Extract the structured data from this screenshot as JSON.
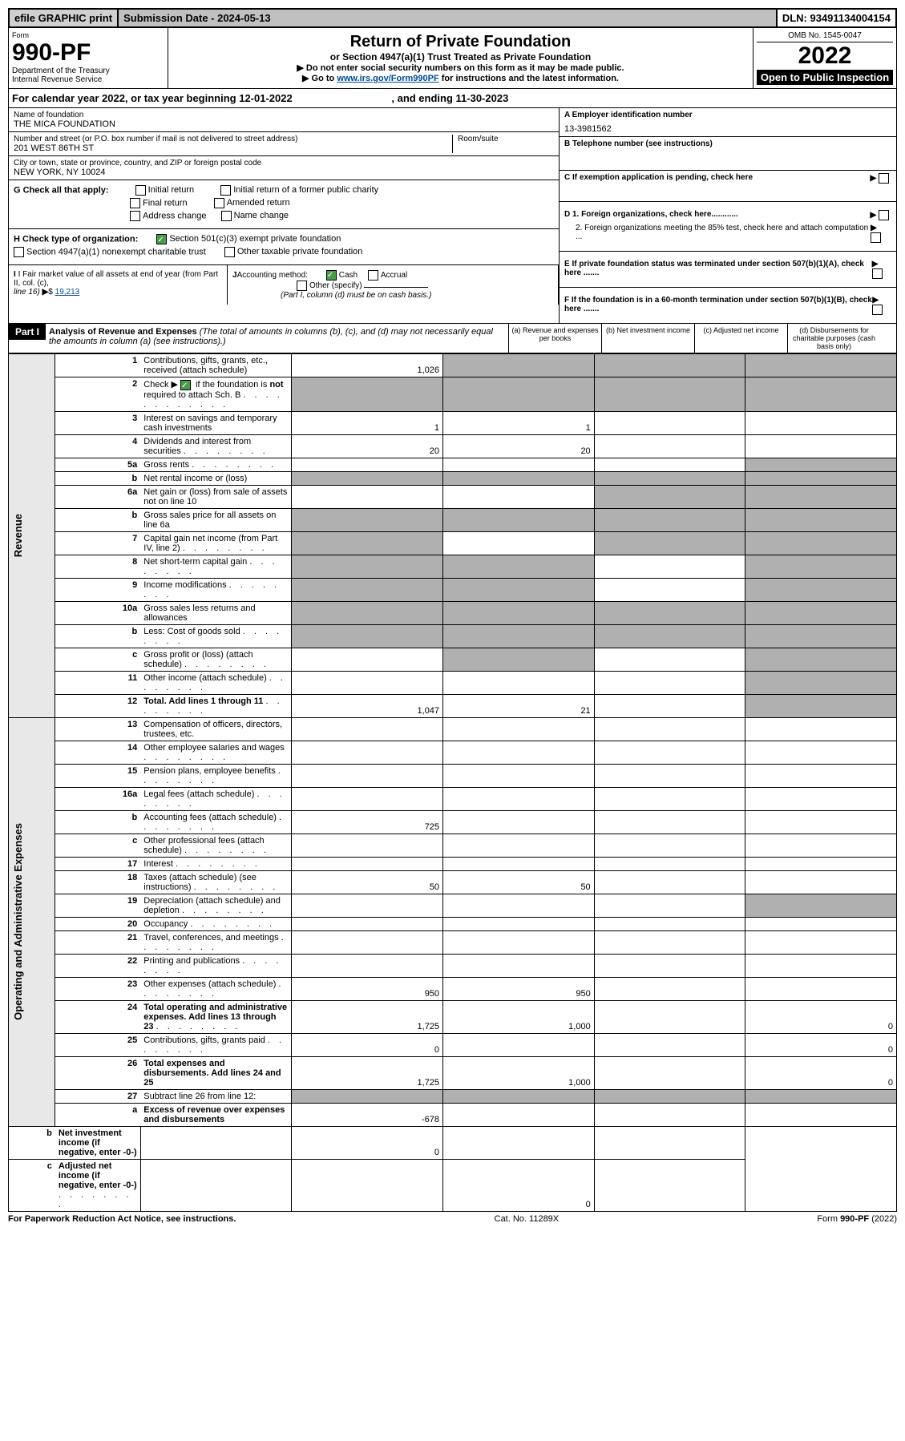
{
  "top": {
    "efile": "efile GRAPHIC print",
    "submission": "Submission Date - 2024-05-13",
    "dln": "DLN: 93491134004154"
  },
  "header": {
    "form": "Form",
    "formNum": "990-PF",
    "dept": "Department of the Treasury",
    "irs": "Internal Revenue Service",
    "title": "Return of Private Foundation",
    "subtitle": "or Section 4947(a)(1) Trust Treated as Private Foundation",
    "instr1": "▶ Do not enter social security numbers on this form as it may be made public.",
    "instr2a": "▶ Go to ",
    "instr2link": "www.irs.gov/Form990PF",
    "instr2b": " for instructions and the latest information.",
    "omb": "OMB No. 1545-0047",
    "year": "2022",
    "open": "Open to Public Inspection"
  },
  "calYear": {
    "text": "For calendar year 2022, or tax year beginning 12-01-2022",
    "end": ", and ending 11-30-2023"
  },
  "entity": {
    "nameLabel": "Name of foundation",
    "name": "THE MICA FOUNDATION",
    "addrLabel": "Number and street (or P.O. box number if mail is not delivered to street address)",
    "roomLabel": "Room/suite",
    "addr": "201 WEST 86TH ST",
    "cityLabel": "City or town, state or province, country, and ZIP or foreign postal code",
    "city": "NEW YORK, NY  10024",
    "einLabel": "A Employer identification number",
    "ein": "13-3981562",
    "telLabel": "B Telephone number (see instructions)",
    "cLabel": "C If exemption application is pending, check here"
  },
  "checkG": {
    "label": "G Check all that apply:",
    "o1": "Initial return",
    "o2": "Initial return of a former public charity",
    "o3": "Final return",
    "o4": "Amended return",
    "o5": "Address change",
    "o6": "Name change"
  },
  "checkH": {
    "label": "H Check type of organization:",
    "o1": "Section 501(c)(3) exempt private foundation",
    "o2": "Section 4947(a)(1) nonexempt charitable trust",
    "o3": "Other taxable private foundation"
  },
  "rightChecks": {
    "d1": "D 1. Foreign organizations, check here............",
    "d2": "2. Foreign organizations meeting the 85% test, check here and attach computation ...",
    "e": "E  If private foundation status was terminated under section 507(b)(1)(A), check here .......",
    "f": "F  If the foundation is in a 60-month termination under section 507(b)(1)(B), check here ......."
  },
  "I": {
    "label": "I Fair market value of all assets at end of year (from Part II, col. (c),",
    "line": "line 16)",
    "amount": "19,213"
  },
  "J": {
    "label": "Accounting method:",
    "cash": "Cash",
    "accrual": "Accrual",
    "other": "Other (specify)",
    "note": "(Part I, column (d) must be on cash basis.)"
  },
  "part1": {
    "label": "Part I",
    "title": "Analysis of Revenue and Expenses",
    "note": "(The total of amounts in columns (b), (c), and (d) may not necessarily equal the amounts in column (a) (see instructions).)",
    "colA": "(a)   Revenue and expenses per books",
    "colB": "(b)   Net investment income",
    "colC": "(c)   Adjusted net income",
    "colD": "(d)  Disbursements for charitable purposes (cash basis only)"
  },
  "sideLabels": {
    "revenue": "Revenue",
    "expenses": "Operating and Administrative Expenses"
  },
  "rows": [
    {
      "n": "1",
      "d": "Contributions, gifts, grants, etc., received (attach schedule)",
      "a": "1,026"
    },
    {
      "n": "2",
      "d": "Check ▶ ☑ if the foundation is not required to attach Sch. B",
      "dots": true
    },
    {
      "n": "3",
      "d": "Interest on savings and temporary cash investments",
      "a": "1",
      "b": "1"
    },
    {
      "n": "4",
      "d": "Dividends and interest from securities",
      "dots": true,
      "a": "20",
      "b": "20"
    },
    {
      "n": "5a",
      "d": "Gross rents",
      "dots": true
    },
    {
      "n": "b",
      "d": "Net rental income or (loss)"
    },
    {
      "n": "6a",
      "d": "Net gain or (loss) from sale of assets not on line 10"
    },
    {
      "n": "b",
      "d": "Gross sales price for all assets on line 6a"
    },
    {
      "n": "7",
      "d": "Capital gain net income (from Part IV, line 2)",
      "dots": true
    },
    {
      "n": "8",
      "d": "Net short-term capital gain",
      "dots": true
    },
    {
      "n": "9",
      "d": "Income modifications",
      "dots": true
    },
    {
      "n": "10a",
      "d": "Gross sales less returns and allowances"
    },
    {
      "n": "b",
      "d": "Less: Cost of goods sold",
      "dots": true
    },
    {
      "n": "c",
      "d": "Gross profit or (loss) (attach schedule)",
      "dots": true
    },
    {
      "n": "11",
      "d": "Other income (attach schedule)",
      "dots": true
    },
    {
      "n": "12",
      "d": "Total. Add lines 1 through 11",
      "dots": true,
      "bold": true,
      "a": "1,047",
      "b": "21"
    },
    {
      "n": "13",
      "d": "Compensation of officers, directors, trustees, etc."
    },
    {
      "n": "14",
      "d": "Other employee salaries and wages",
      "dots": true
    },
    {
      "n": "15",
      "d": "Pension plans, employee benefits",
      "dots": true
    },
    {
      "n": "16a",
      "d": "Legal fees (attach schedule)",
      "dots": true
    },
    {
      "n": "b",
      "d": "Accounting fees (attach schedule)",
      "dots": true,
      "a": "725"
    },
    {
      "n": "c",
      "d": "Other professional fees (attach schedule)",
      "dots": true
    },
    {
      "n": "17",
      "d": "Interest",
      "dots": true
    },
    {
      "n": "18",
      "d": "Taxes (attach schedule) (see instructions)",
      "dots": true,
      "a": "50",
      "b": "50"
    },
    {
      "n": "19",
      "d": "Depreciation (attach schedule) and depletion",
      "dots": true
    },
    {
      "n": "20",
      "d": "Occupancy",
      "dots": true
    },
    {
      "n": "21",
      "d": "Travel, conferences, and meetings",
      "dots": true
    },
    {
      "n": "22",
      "d": "Printing and publications",
      "dots": true
    },
    {
      "n": "23",
      "d": "Other expenses (attach schedule)",
      "dots": true,
      "a": "950",
      "b": "950"
    },
    {
      "n": "24",
      "d": "Total operating and administrative expenses. Add lines 13 through 23",
      "dots": true,
      "bold": true,
      "a": "1,725",
      "b": "1,000",
      "dval": "0"
    },
    {
      "n": "25",
      "d": "Contributions, gifts, grants paid",
      "dots": true,
      "a": "0",
      "dval": "0"
    },
    {
      "n": "26",
      "d": "Total expenses and disbursements. Add lines 24 and 25",
      "bold": true,
      "a": "1,725",
      "b": "1,000",
      "dval": "0"
    },
    {
      "n": "27",
      "d": "Subtract line 26 from line 12:"
    },
    {
      "n": "a",
      "d": "Excess of revenue over expenses and disbursements",
      "bold": true,
      "a": "-678"
    },
    {
      "n": "b",
      "d": "Net investment income (if negative, enter -0-)",
      "bold": true,
      "b": "0"
    },
    {
      "n": "c",
      "d": "Adjusted net income (if negative, enter -0-)",
      "bold": true,
      "dots": true,
      "c": "0"
    }
  ],
  "shading": {
    "1": {
      "b": true,
      "c": true,
      "d": true
    },
    "2": {
      "a": true,
      "b": true,
      "c": true,
      "d": true
    },
    "5a": {
      "d": true
    },
    "b_5": {
      "a": true,
      "b": true,
      "c": true,
      "d": true
    },
    "6a": {
      "c": true,
      "d": true
    },
    "b_6": {
      "a": true,
      "b": true,
      "c": true,
      "d": true
    },
    "7": {
      "a": true,
      "c": true,
      "d": true
    },
    "8": {
      "a": true,
      "b": true,
      "d": true
    },
    "9": {
      "a": true,
      "b": true,
      "d": true
    },
    "10a": {
      "a": true,
      "b": true,
      "c": true,
      "d": true
    },
    "b_10": {
      "a": true,
      "b": true,
      "c": true,
      "d": true
    },
    "c_10": {
      "b": true,
      "d": true
    },
    "11": {
      "d": true
    },
    "12": {
      "d": true
    },
    "19": {
      "d": true
    },
    "27": {
      "a": true,
      "b": true,
      "c": true,
      "d": true
    },
    "a_27": {
      "b": true,
      "c": true,
      "d": true
    },
    "b_27": {
      "a": true,
      "c": true,
      "d": true
    },
    "c_27": {
      "a": true,
      "b": true,
      "d": true
    }
  },
  "footer": {
    "left": "For Paperwork Reduction Act Notice, see instructions.",
    "mid": "Cat. No. 11289X",
    "right": "Form 990-PF (2022)"
  }
}
